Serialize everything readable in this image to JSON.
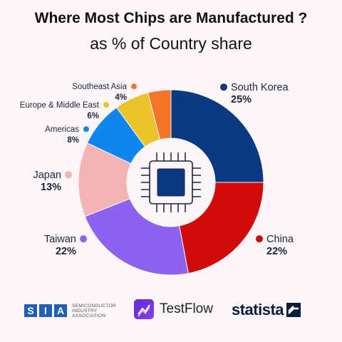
{
  "title": "Where Most Chips are Manufactured ?",
  "subtitle": "as % of Country share",
  "chart_data": {
    "type": "pie",
    "title": "Where Most Chips are Manufactured ?",
    "subtitle": "as % of Country share",
    "slices": [
      {
        "label": "South Korea",
        "value": 25,
        "display": "25%",
        "color": "#0b3a82"
      },
      {
        "label": "China",
        "value": 22,
        "display": "22%",
        "color": "#d10a0a"
      },
      {
        "label": "Taiwan",
        "value": 22,
        "display": "22%",
        "color": "#8b63ef"
      },
      {
        "label": "Japan",
        "value": 13,
        "display": "13%",
        "color": "#f4b3b5"
      },
      {
        "label": "Americas",
        "value": 8,
        "display": "8%",
        "color": "#0f86ee"
      },
      {
        "label": "Europe & Middle East",
        "value": 6,
        "display": "6%",
        "color": "#ebc32a"
      },
      {
        "label": "Southeast Asia",
        "value": 4,
        "display": "4%",
        "color": "#f4742a"
      }
    ]
  },
  "footer": {
    "sia_mark": "SIA",
    "sia_line1": "SEMICONDUCTOR",
    "sia_line2": "INDUSTRY",
    "sia_line3": "ASSOCIATION",
    "testflow": "TestFlow",
    "statista": "statista"
  }
}
